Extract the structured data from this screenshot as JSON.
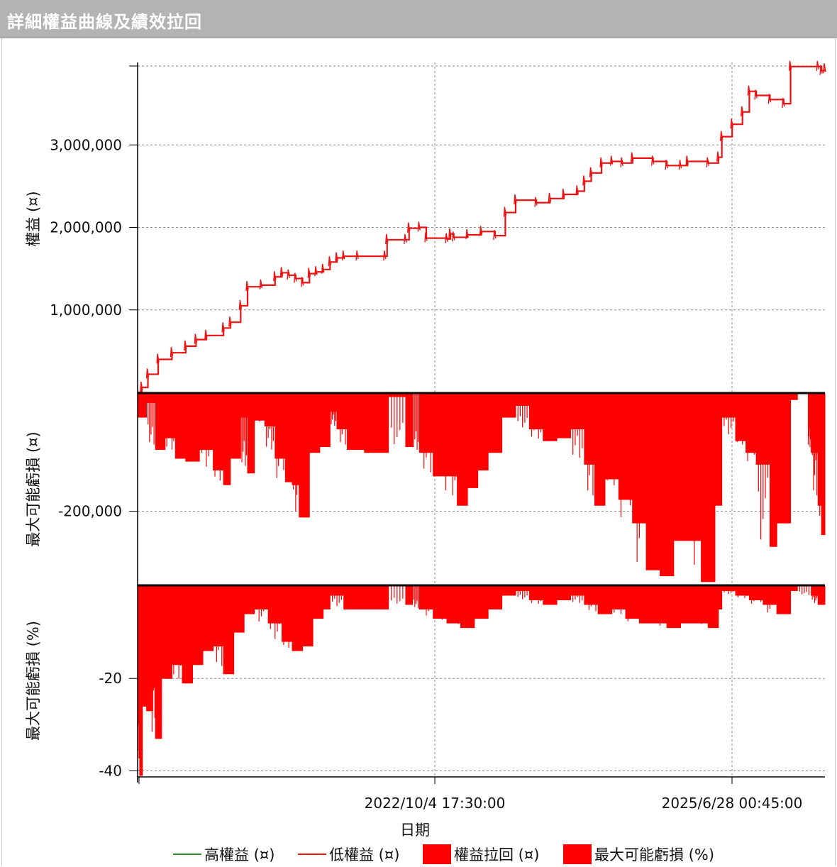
{
  "window": {
    "title": "詳細權益曲線及績效拉回"
  },
  "colors": {
    "high": "#2e8b2e",
    "low": "#ee1111",
    "fill": "#ff0000",
    "grid": "#8a8a8a",
    "axis": "#000000"
  },
  "chart_data": {
    "type": "line",
    "xlabel": "日期",
    "x_ticks": [
      "2022/10/4 17:30:00",
      "2025/6/28 00:45:00"
    ],
    "legend": [
      "高權益 (¤)",
      "低權益 (¤)",
      "權益拉回 (¤)",
      "最大可能虧損 (%)"
    ],
    "legend_position": "bottom",
    "grid": true,
    "panels": [
      {
        "name": "equity",
        "ylabel": "權益 (¤)",
        "y_ticks": [
          "3,000,000",
          "2,000,000",
          "1,000,000"
        ],
        "y_tick_values": [
          3000000,
          2000000,
          1000000
        ],
        "ylim": [
          0,
          4000000
        ],
        "series": [
          {
            "name": "高權益 (¤)",
            "color": "#2e8b2e"
          },
          {
            "name": "低權益 (¤)",
            "color": "#ee1111",
            "points": [
              [
                0,
                0
              ],
              [
                0.6,
                60000
              ],
              [
                1.5,
                220000
              ],
              [
                3,
                400000
              ],
              [
                5,
                480000
              ],
              [
                7,
                560000
              ],
              [
                8.5,
                640000
              ],
              [
                10,
                690000
              ],
              [
                12.5,
                780000
              ],
              [
                13.5,
                850000
              ],
              [
                15,
                1050000
              ],
              [
                16,
                1280000
              ],
              [
                18,
                1300000
              ],
              [
                20,
                1400000
              ],
              [
                21,
                1450000
              ],
              [
                22,
                1420000
              ],
              [
                23,
                1380000
              ],
              [
                24,
                1330000
              ],
              [
                25,
                1440000
              ],
              [
                26,
                1460000
              ],
              [
                27,
                1490000
              ],
              [
                28,
                1580000
              ],
              [
                29,
                1630000
              ],
              [
                30,
                1650000
              ],
              [
                32,
                1650000
              ],
              [
                36,
                1650000
              ],
              [
                36.3,
                1850000
              ],
              [
                39,
                1850000
              ],
              [
                39.5,
                1990000
              ],
              [
                41,
                2000000
              ],
              [
                42,
                1870000
              ],
              [
                45,
                1860000
              ],
              [
                45.5,
                1920000
              ],
              [
                46,
                1880000
              ],
              [
                48,
                1910000
              ],
              [
                50,
                1950000
              ],
              [
                52,
                1900000
              ],
              [
                53.5,
                2180000
              ],
              [
                55,
                2330000
              ],
              [
                58,
                2300000
              ],
              [
                60,
                2350000
              ],
              [
                62,
                2400000
              ],
              [
                64,
                2440000
              ],
              [
                65,
                2560000
              ],
              [
                66,
                2660000
              ],
              [
                67.5,
                2780000
              ],
              [
                69,
                2800000
              ],
              [
                70.5,
                2780000
              ],
              [
                72,
                2840000
              ],
              [
                75,
                2800000
              ],
              [
                77,
                2750000
              ],
              [
                79,
                2750000
              ],
              [
                80,
                2800000
              ],
              [
                83,
                2780000
              ],
              [
                84.5,
                2850000
              ],
              [
                85,
                3100000
              ],
              [
                86.5,
                3250000
              ],
              [
                88,
                3400000
              ],
              [
                89,
                3650000
              ],
              [
                90,
                3600000
              ],
              [
                92,
                3550000
              ],
              [
                94,
                3500000
              ],
              [
                95,
                3950000
              ],
              [
                99,
                3950000
              ],
              [
                99.5,
                3900000
              ],
              [
                100,
                3920000
              ]
            ]
          }
        ]
      },
      {
        "name": "drawdown",
        "ylabel": "最大可能虧損 (¤)",
        "y_ticks": [
          "-200,000"
        ],
        "y_tick_values": [
          -200000
        ],
        "ylim": [
          -325000,
          0
        ],
        "series": [
          {
            "name": "權益拉回 (¤)",
            "color": "#ff0000",
            "points": [
              [
                0,
                -40000
              ],
              [
                1.3,
                -15000
              ],
              [
                2.6,
                -95000
              ],
              [
                4,
                -75000
              ],
              [
                5.5,
                -110000
              ],
              [
                7,
                -115000
              ],
              [
                9,
                -95000
              ],
              [
                11,
                -130000
              ],
              [
                12.5,
                -155000
              ],
              [
                13.5,
                -110000
              ],
              [
                15,
                -40000
              ],
              [
                16,
                -135000
              ],
              [
                17,
                -45000
              ],
              [
                18.5,
                -55000
              ],
              [
                20,
                -110000
              ],
              [
                21.5,
                -150000
              ],
              [
                22.5,
                -155000
              ],
              [
                23.5,
                -210000
              ],
              [
                25,
                -100000
              ],
              [
                26.5,
                -90000
              ],
              [
                28,
                -30000
              ],
              [
                29,
                -60000
              ],
              [
                30.5,
                -95000
              ],
              [
                33,
                -100000
              ],
              [
                36,
                -100000
              ],
              [
                36.5,
                -5000
              ],
              [
                39,
                -90000
              ],
              [
                40,
                0
              ],
              [
                41,
                -100000
              ],
              [
                43,
                -140000
              ],
              [
                44.5,
                -140000
              ],
              [
                46.5,
                -190000
              ],
              [
                48,
                -160000
              ],
              [
                49.5,
                -130000
              ],
              [
                51,
                -100000
              ],
              [
                53,
                -40000
              ],
              [
                55,
                -20000
              ],
              [
                57,
                -60000
              ],
              [
                59,
                -80000
              ],
              [
                61,
                -75000
              ],
              [
                63,
                -60000
              ],
              [
                65,
                -120000
              ],
              [
                66.5,
                -190000
              ],
              [
                68,
                -145000
              ],
              [
                70,
                -180000
              ],
              [
                72,
                -220000
              ],
              [
                74,
                -300000
              ],
              [
                76,
                -310000
              ],
              [
                78,
                -250000
              ],
              [
                80,
                -250000
              ],
              [
                82,
                -320000
              ],
              [
                84,
                -190000
              ],
              [
                85,
                -40000
              ],
              [
                87,
                -80000
              ],
              [
                88.5,
                -100000
              ],
              [
                90,
                -120000
              ],
              [
                92,
                -260000
              ],
              [
                93,
                -220000
              ],
              [
                95,
                -10000
              ],
              [
                96,
                0
              ],
              [
                97.5,
                0
              ],
              [
                98,
                -100000
              ],
              [
                99,
                -190000
              ],
              [
                99.5,
                -240000
              ],
              [
                100,
                -160000
              ]
            ]
          }
        ]
      },
      {
        "name": "drawdown_pct",
        "ylabel": "最大可能虧損 (%)",
        "y_ticks": [
          "-20",
          "-40"
        ],
        "y_tick_values": [
          -20,
          -40
        ],
        "ylim": [
          -41,
          0
        ],
        "series": [
          {
            "name": "最大可能虧損 (%)",
            "color": "#ff0000",
            "points": [
              [
                0,
                -15
              ],
              [
                0.3,
                -41
              ],
              [
                0.7,
                -26
              ],
              [
                1.3,
                -27
              ],
              [
                2,
                -22
              ],
              [
                2.6,
                -33
              ],
              [
                3.5,
                -20
              ],
              [
                5,
                -17
              ],
              [
                6.5,
                -21
              ],
              [
                8,
                -17
              ],
              [
                9.5,
                -14
              ],
              [
                11,
                -13
              ],
              [
                12.5,
                -19
              ],
              [
                14,
                -10
              ],
              [
                15.5,
                -6
              ],
              [
                17,
                -5
              ],
              [
                19,
                -8
              ],
              [
                21,
                -12
              ],
              [
                22.5,
                -14
              ],
              [
                24,
                -13
              ],
              [
                25.5,
                -7
              ],
              [
                27,
                -5
              ],
              [
                28,
                -2
              ],
              [
                30,
                -5
              ],
              [
                33,
                -5
              ],
              [
                36,
                -5
              ],
              [
                36.5,
                0
              ],
              [
                39,
                -4
              ],
              [
                40,
                0
              ],
              [
                41,
                -5
              ],
              [
                43,
                -7
              ],
              [
                45,
                -8
              ],
              [
                47,
                -9
              ],
              [
                49,
                -7
              ],
              [
                51,
                -5
              ],
              [
                53,
                -2
              ],
              [
                55,
                -1
              ],
              [
                57,
                -3
              ],
              [
                59,
                -4
              ],
              [
                61,
                -3
              ],
              [
                63,
                -2
              ],
              [
                65,
                -4
              ],
              [
                67,
                -6
              ],
              [
                69,
                -5
              ],
              [
                71,
                -7
              ],
              [
                73,
                -8
              ],
              [
                75,
                -8
              ],
              [
                77,
                -9
              ],
              [
                79,
                -8
              ],
              [
                81,
                -8
              ],
              [
                83,
                -9
              ],
              [
                84.5,
                -5
              ],
              [
                85,
                -1
              ],
              [
                87,
                -2
              ],
              [
                89,
                -3
              ],
              [
                91,
                -4
              ],
              [
                93,
                -6
              ],
              [
                95,
                -1
              ],
              [
                96,
                0
              ],
              [
                98,
                -2
              ],
              [
                99,
                -4
              ],
              [
                100,
                -4
              ]
            ]
          }
        ]
      }
    ]
  }
}
